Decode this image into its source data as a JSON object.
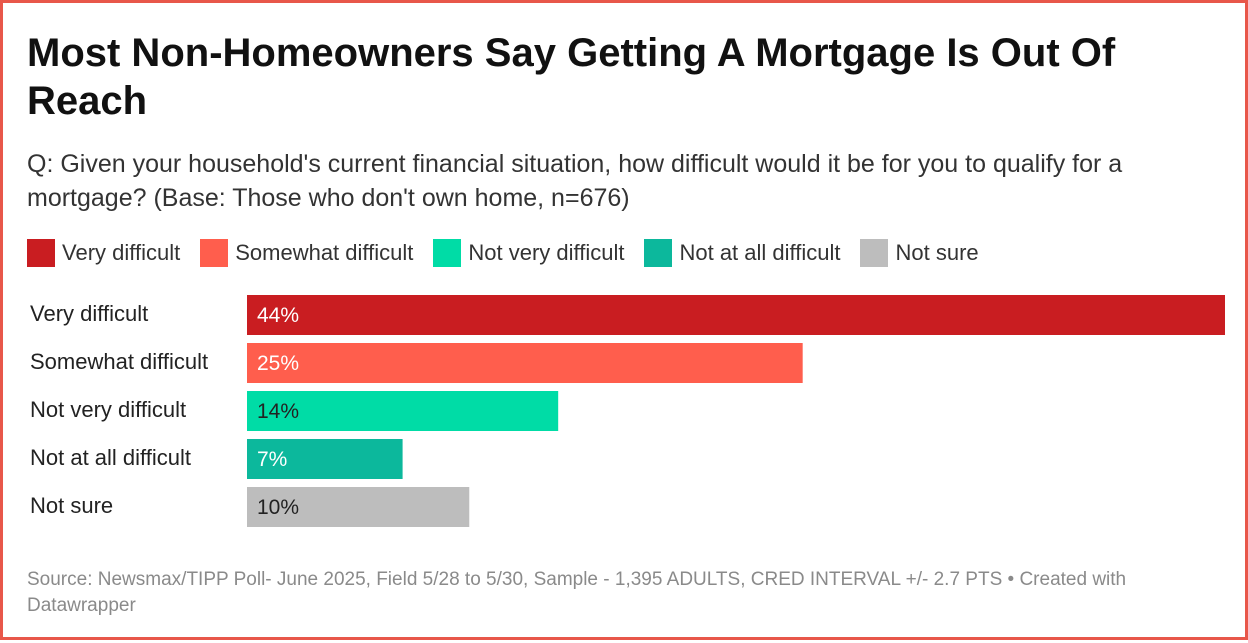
{
  "title": "Most Non-Homeowners Say Getting A Mortgage Is Out Of Reach",
  "subtitle": "Q: Given your household's current financial situation, how difficult would it be for you to qualify for a mortgage? (Base: Those who don't own home, n=676)",
  "legend": [
    {
      "label": "Very difficult",
      "color": "#c91d21"
    },
    {
      "label": "Somewhat difficult",
      "color": "#ff5e4d"
    },
    {
      "label": "Not very difficult",
      "color": "#00dca6"
    },
    {
      "label": "Not at all difficult",
      "color": "#0cb89c"
    },
    {
      "label": "Not sure",
      "color": "#bdbdbd"
    }
  ],
  "chart_data": {
    "type": "bar",
    "orientation": "horizontal",
    "categories": [
      "Very difficult",
      "Somewhat difficult",
      "Not very difficult",
      "Not at all difficult",
      "Not sure"
    ],
    "values": [
      44,
      25,
      14,
      7,
      10
    ],
    "value_labels": [
      "44%",
      "25%",
      "14%",
      "7%",
      "10%"
    ],
    "colors": [
      "#c91d21",
      "#ff5e4d",
      "#00dca6",
      "#0cb89c",
      "#bdbdbd"
    ],
    "label_colors": [
      "#ffffff",
      "#ffffff",
      "#222222",
      "#ffffff",
      "#222222"
    ],
    "unit": "%",
    "xlim": [
      0,
      44
    ],
    "grid": false,
    "legend_position": "top"
  },
  "footer": "Source: Newsmax/TIPP Poll- June 2025, Field 5/28 to 5/30, Sample - 1,395 ADULTS, CRED INTERVAL +/- 2.7 PTS • Created with Datawrapper"
}
